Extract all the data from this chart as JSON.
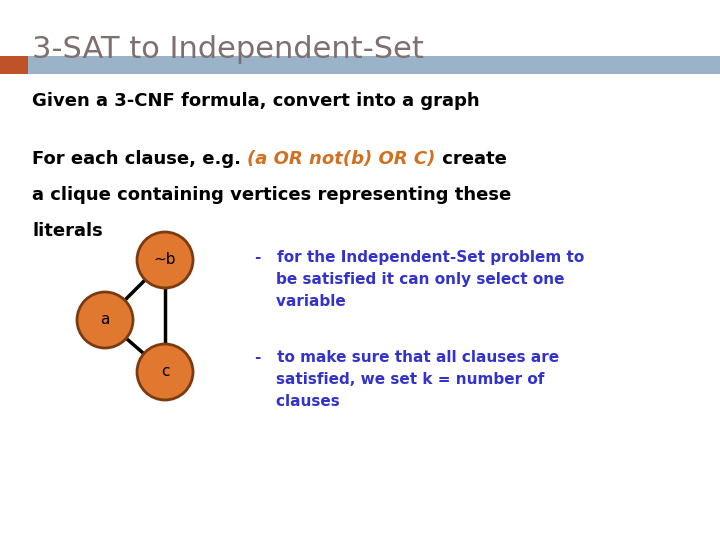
{
  "title": "3-SAT to Independent-Set",
  "title_color": "#7F6F6F",
  "title_fontsize": 22,
  "bar_color_orange": "#C0522A",
  "header_bar_blue": "#9BB3C8",
  "header_bar_orange": "#C0522A",
  "background_color": "#FFFFFF",
  "line1": "Given a 3-CNF formula, convert into a graph",
  "line2a": "For each clause, e.g. ",
  "line2b": "(a OR not(b) OR C)",
  "line2c": " create",
  "line3": "a clique containing vertices representing these",
  "line4": "literals",
  "node_color": "#E07830",
  "node_edge_color": "#7B3A10",
  "edges": [
    [
      "a",
      "~b"
    ],
    [
      "a",
      "c"
    ],
    [
      "~b",
      "c"
    ]
  ],
  "bullet1": "-   for the Independent-Set problem to\n    be satisfied it can only select one\n    variable",
  "bullet2": "-   to make sure that all clauses are\n    satisfied, we set k = number of\n    clauses",
  "bullet_color": "#3333CC",
  "text_color": "#000000",
  "italic_color": "#D07020"
}
